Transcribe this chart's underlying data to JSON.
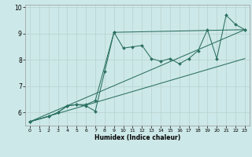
{
  "xlabel": "Humidex (Indice chaleur)",
  "ylabel": "",
  "bg_color": "#cde8e8",
  "grid_color": "#b8d0d0",
  "line_color": "#2a7060",
  "xlim": [
    -0.5,
    23.5
  ],
  "ylim": [
    5.5,
    10.1
  ],
  "yticks": [
    6,
    7,
    8,
    9,
    10
  ],
  "xticks": [
    0,
    1,
    2,
    3,
    4,
    5,
    6,
    7,
    8,
    9,
    10,
    11,
    12,
    13,
    14,
    15,
    16,
    17,
    18,
    19,
    20,
    21,
    22,
    23
  ],
  "series": [
    {
      "x": [
        0,
        2,
        3,
        4,
        5,
        6,
        7,
        9,
        23
      ],
      "y": [
        5.65,
        5.85,
        6.0,
        6.25,
        6.3,
        6.3,
        6.45,
        9.05,
        9.15
      ],
      "marker": true,
      "markersize": 2.0
    },
    {
      "x": [
        0,
        2,
        3,
        4,
        5,
        6,
        7,
        8,
        9,
        10,
        11,
        12,
        13,
        14,
        15,
        16,
        17,
        18,
        19,
        20,
        21,
        22,
        23
      ],
      "y": [
        5.65,
        5.85,
        6.0,
        6.25,
        6.3,
        6.25,
        6.05,
        7.55,
        9.05,
        8.45,
        8.5,
        8.55,
        8.05,
        7.95,
        8.05,
        7.85,
        8.05,
        8.35,
        9.15,
        8.05,
        9.7,
        9.35,
        9.15
      ],
      "marker": true,
      "markersize": 2.0
    },
    {
      "x": [
        0,
        23
      ],
      "y": [
        5.65,
        9.15
      ],
      "marker": false,
      "markersize": 0
    },
    {
      "x": [
        0,
        23
      ],
      "y": [
        5.65,
        8.05
      ],
      "marker": false,
      "markersize": 0
    }
  ]
}
